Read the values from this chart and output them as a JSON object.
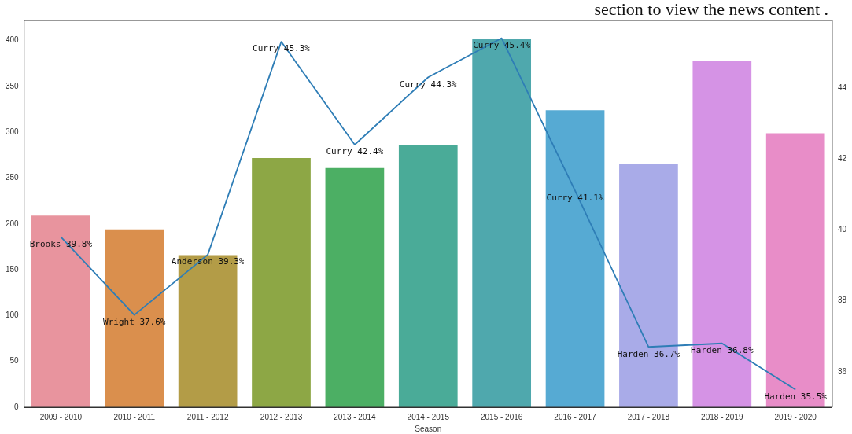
{
  "chart_data": {
    "type": "bar",
    "xlabel": "Season",
    "annotations": [
      "section to view the news content ."
    ],
    "categories": [
      "2009 - 2010",
      "2010 - 2011",
      "2011 - 2012",
      "2012 - 2013",
      "2013 - 2014",
      "2014 - 2015",
      "2015 - 2016",
      "2016 - 2017",
      "2017 - 2018",
      "2018 - 2019",
      "2019 - 2020"
    ],
    "series": [
      {
        "colors": [
          "#e8949e",
          "#da8f4d",
          "#b39c47",
          "#8da745",
          "#4caf64",
          "#4aab98",
          "#4fa8ad",
          "#56aad3",
          "#a9abe8",
          "#d593e5",
          "#e88dc8"
        ],
        "values": [
          209,
          194,
          166,
          272,
          261,
          286,
          402,
          324,
          265,
          378,
          299
        ]
      },
      {
        "type": "line",
        "axis": "y2",
        "color": "#2e7db6",
        "values": [
          39.8,
          37.6,
          39.3,
          45.3,
          42.4,
          44.3,
          45.4,
          41.1,
          36.7,
          36.8,
          35.5
        ],
        "value_labels": [
          "Brooks 39.8%",
          "Wright 37.6%",
          "Anderson 39.3%",
          "Curry 45.3%",
          "Curry 42.4%",
          "Curry 44.3%",
          "Curry 45.4%",
          "Curry 41.1%",
          "Harden 36.7%",
          "Harden 36.8%",
          "Harden 35.5%"
        ]
      }
    ],
    "ylim": [
      0,
      422
    ],
    "yticks": [
      0,
      50,
      100,
      150,
      200,
      250,
      300,
      350,
      400
    ],
    "y2lim": [
      35.0,
      45.9
    ],
    "y2ticks": [
      36,
      38,
      40,
      42,
      44
    ],
    "grid": false,
    "legend": false
  }
}
